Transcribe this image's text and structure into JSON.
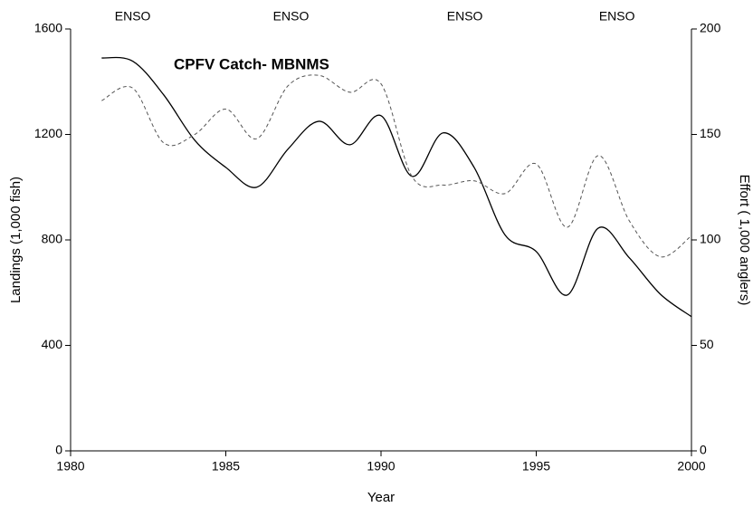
{
  "chart_data": {
    "type": "line",
    "title": "CPFV Catch- MBNMS",
    "xlabel": "Year",
    "ylabel": "Landings (1,000 fish)",
    "y2label": "Effort ( 1,000 anglers)",
    "x": [
      1981,
      1982,
      1983,
      1984,
      1985,
      1986,
      1987,
      1988,
      1989,
      1990,
      1991,
      1992,
      1993,
      1994,
      1995,
      1996,
      1997,
      1998,
      1999,
      2000
    ],
    "series": [
      {
        "name": "Landings",
        "color": "#000000",
        "dash": "solid",
        "values": [
          1490,
          1478,
          1350,
          1178,
          1075,
          1000,
          1144,
          1250,
          1161,
          1271,
          1041,
          1206,
          1075,
          818,
          756,
          591,
          845,
          732,
          594,
          509
        ]
      },
      {
        "name": "Effort",
        "color": "#555555",
        "dash": "dashed",
        "axis": "y2",
        "values": [
          166,
          172,
          146,
          150,
          162,
          148,
          173,
          178,
          170,
          174,
          130,
          126,
          128,
          122,
          136,
          106,
          140,
          109,
          92,
          102
        ]
      }
    ],
    "annotations": [
      {
        "text": "ENSO",
        "x": 1982
      },
      {
        "text": "ENSO",
        "x": 1987.1
      },
      {
        "text": "ENSO",
        "x": 1992.7
      },
      {
        "text": "ENSO",
        "x": 1997.6
      }
    ],
    "xlim": [
      1980,
      2000
    ],
    "xticks": [
      1980,
      1985,
      1990,
      1995,
      2000
    ],
    "ylim": [
      0,
      1600
    ],
    "yticks": [
      0,
      400,
      800,
      1200,
      1600
    ],
    "y2lim": [
      0,
      200
    ],
    "y2ticks": [
      0,
      50,
      100,
      150,
      200
    ],
    "grid": false
  }
}
